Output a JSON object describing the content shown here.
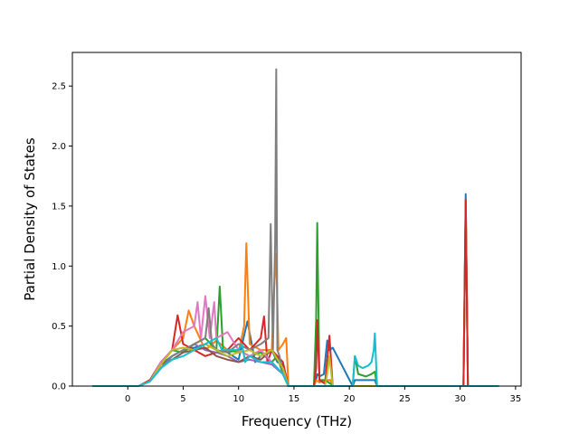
{
  "chart_data": {
    "type": "line",
    "xlabel": "Frequency (THz)",
    "ylabel": "Partial Density of States",
    "xlim": [
      -5,
      35.5
    ],
    "ylim": [
      0,
      2.78
    ],
    "xticks": [
      0,
      5,
      10,
      15,
      20,
      25,
      30,
      35
    ],
    "yticks": [
      0.0,
      0.5,
      1.0,
      1.5,
      2.0,
      2.5
    ],
    "xtick_labels": [
      "0",
      "5",
      "10",
      "15",
      "20",
      "25",
      "30",
      "35"
    ],
    "ytick_labels": [
      "0.0",
      "0.5",
      "1.0",
      "1.5",
      "2.0",
      "2.5"
    ],
    "grid": false,
    "legend": "none",
    "series": [
      {
        "color": "#1f77b4",
        "x": [
          -3.2,
          1,
          2,
          3,
          4,
          5,
          6,
          7,
          8,
          9,
          10,
          10.8,
          11.5,
          12,
          13,
          13.5,
          14,
          14.3,
          14.5,
          16.8,
          17,
          17.1,
          17.3,
          17.7,
          18,
          18.2,
          18.5,
          20.3,
          20.5,
          21,
          21.5,
          22,
          22.3,
          22.5,
          30.3,
          30.5,
          30.7,
          33.5
        ],
        "y": [
          0,
          0,
          0.05,
          0.18,
          0.25,
          0.3,
          0.32,
          0.35,
          0.3,
          0.28,
          0.22,
          0.54,
          0.2,
          0.25,
          0.3,
          0.2,
          0.18,
          0.05,
          0,
          0,
          0.05,
          0.1,
          0.08,
          0.1,
          0.38,
          0.3,
          0.32,
          0,
          0.05,
          0.05,
          0.05,
          0.05,
          0.05,
          0,
          0,
          1.6,
          0,
          0
        ]
      },
      {
        "color": "#ff7f0e",
        "x": [
          -3.2,
          1,
          2,
          3,
          4,
          5,
          5.5,
          6,
          7,
          8,
          9,
          10,
          10.5,
          10.7,
          11,
          12,
          13,
          13.2,
          13.4,
          13.6,
          14,
          14.3,
          14.5,
          16.8,
          17,
          17.3,
          17.8,
          18.3,
          18.5,
          20.3,
          30.3,
          30.5,
          30.7,
          33.5
        ],
        "y": [
          0,
          0,
          0.05,
          0.18,
          0.3,
          0.4,
          0.63,
          0.5,
          0.3,
          0.38,
          0.3,
          0.28,
          0.5,
          1.19,
          0.35,
          0.3,
          0.3,
          0.8,
          1.1,
          0.3,
          0.35,
          0.4,
          0,
          0,
          0.05,
          0.03,
          0.05,
          0.05,
          0,
          0,
          0,
          1.5,
          0,
          0
        ]
      },
      {
        "color": "#2ca02c",
        "x": [
          -3.2,
          1,
          2,
          3,
          4,
          5,
          6,
          7,
          8,
          8.3,
          8.6,
          9,
          10,
          11,
          12,
          13,
          13.5,
          14,
          14.5,
          16.8,
          17,
          17.1,
          17.3,
          17.8,
          18.3,
          18.5,
          20.3,
          20.5,
          20.8,
          21.5,
          22,
          22.3,
          22.5,
          30.3,
          30.5,
          30.7,
          33.5
        ],
        "y": [
          0,
          0,
          0.05,
          0.2,
          0.3,
          0.28,
          0.35,
          0.4,
          0.3,
          0.83,
          0.3,
          0.28,
          0.3,
          0.25,
          0.28,
          0.2,
          0.25,
          0.1,
          0,
          0,
          0.55,
          1.36,
          0.05,
          0.05,
          0.02,
          0,
          0,
          0.25,
          0.1,
          0.08,
          0.1,
          0.12,
          0,
          0,
          1.55,
          0,
          0
        ]
      },
      {
        "color": "#d62728",
        "x": [
          -3.2,
          1,
          2,
          3,
          4,
          4.5,
          5,
          6,
          7,
          8,
          9,
          10,
          11,
          12,
          12.3,
          12.6,
          13,
          14,
          14.5,
          16.8,
          17,
          17.1,
          17.3,
          17.8,
          18.2,
          18.5,
          20.3,
          30.3,
          30.5,
          30.7,
          33.5
        ],
        "y": [
          0,
          0,
          0.05,
          0.2,
          0.3,
          0.59,
          0.35,
          0.3,
          0.25,
          0.28,
          0.3,
          0.4,
          0.3,
          0.4,
          0.58,
          0.2,
          0.3,
          0.2,
          0,
          0,
          0.15,
          0.55,
          0.05,
          0.02,
          0.42,
          0,
          0,
          0,
          1.55,
          0,
          0
        ]
      },
      {
        "color": "#9467bd",
        "x": [
          -3.2,
          1,
          2,
          3,
          4,
          5,
          6,
          7,
          8,
          9,
          10,
          11,
          12,
          13,
          14,
          14.5,
          30.3,
          30.5,
          30.7,
          33.5
        ],
        "y": [
          0,
          0,
          0.04,
          0.15,
          0.25,
          0.3,
          0.35,
          0.3,
          0.28,
          0.25,
          0.2,
          0.22,
          0.2,
          0.18,
          0.1,
          0,
          0,
          0,
          0,
          0
        ]
      },
      {
        "color": "#8c564b",
        "x": [
          -3.2,
          1,
          2,
          3,
          4,
          5,
          6,
          7,
          8,
          9,
          10,
          11,
          12,
          13,
          14,
          14.5,
          33.5
        ],
        "y": [
          0,
          0,
          0.04,
          0.18,
          0.22,
          0.28,
          0.3,
          0.32,
          0.25,
          0.22,
          0.2,
          0.25,
          0.22,
          0.3,
          0.15,
          0,
          0
        ]
      },
      {
        "color": "#e377c2",
        "x": [
          -3.2,
          1,
          2,
          3,
          4,
          5,
          6,
          6.3,
          6.6,
          7,
          7.4,
          7.8,
          8,
          9,
          10,
          11,
          12,
          13,
          14,
          14.5,
          33.5
        ],
        "y": [
          0,
          0,
          0.04,
          0.2,
          0.3,
          0.45,
          0.5,
          0.7,
          0.4,
          0.75,
          0.4,
          0.7,
          0.4,
          0.45,
          0.3,
          0.25,
          0.3,
          0.2,
          0.1,
          0,
          0
        ]
      },
      {
        "color": "#7f7f7f",
        "x": [
          -3.2,
          1,
          2,
          3,
          4,
          5,
          6,
          7,
          7.3,
          7.6,
          8,
          9,
          10,
          11,
          12,
          12.7,
          12.9,
          13.1,
          13.3,
          13.4,
          13.5,
          13.7,
          14,
          14.5,
          33.5
        ],
        "y": [
          0,
          0,
          0.04,
          0.15,
          0.25,
          0.3,
          0.35,
          0.4,
          0.65,
          0.35,
          0.3,
          0.28,
          0.35,
          0.3,
          0.35,
          0.4,
          1.35,
          0.3,
          1.2,
          2.64,
          0.3,
          0.25,
          0.1,
          0,
          0
        ]
      },
      {
        "color": "#bcbd22",
        "x": [
          -3.2,
          1,
          2,
          3,
          4,
          5,
          6,
          7,
          8,
          9,
          10,
          11,
          12,
          13,
          14,
          14.5,
          17.8,
          18,
          18.2,
          18.5,
          33.5
        ],
        "y": [
          0,
          0,
          0.04,
          0.18,
          0.3,
          0.32,
          0.3,
          0.35,
          0.3,
          0.25,
          0.28,
          0.3,
          0.25,
          0.3,
          0.15,
          0,
          0,
          0.1,
          0.25,
          0,
          0
        ]
      },
      {
        "color": "#17becf",
        "x": [
          -3.2,
          1,
          2,
          3,
          4,
          5,
          6,
          7,
          8,
          8.5,
          9,
          10,
          10.3,
          10.6,
          11,
          12,
          13,
          14,
          14.5,
          20.3,
          20.5,
          20.8,
          21.2,
          21.7,
          22,
          22.2,
          22.3,
          22.5,
          33.5
        ],
        "y": [
          0,
          0,
          0.04,
          0.15,
          0.22,
          0.25,
          0.3,
          0.35,
          0.4,
          0.3,
          0.3,
          0.3,
          0.35,
          0.2,
          0.25,
          0.2,
          0.2,
          0.1,
          0,
          0,
          0.25,
          0.17,
          0.15,
          0.17,
          0.2,
          0.3,
          0.44,
          0,
          0
        ]
      }
    ]
  }
}
